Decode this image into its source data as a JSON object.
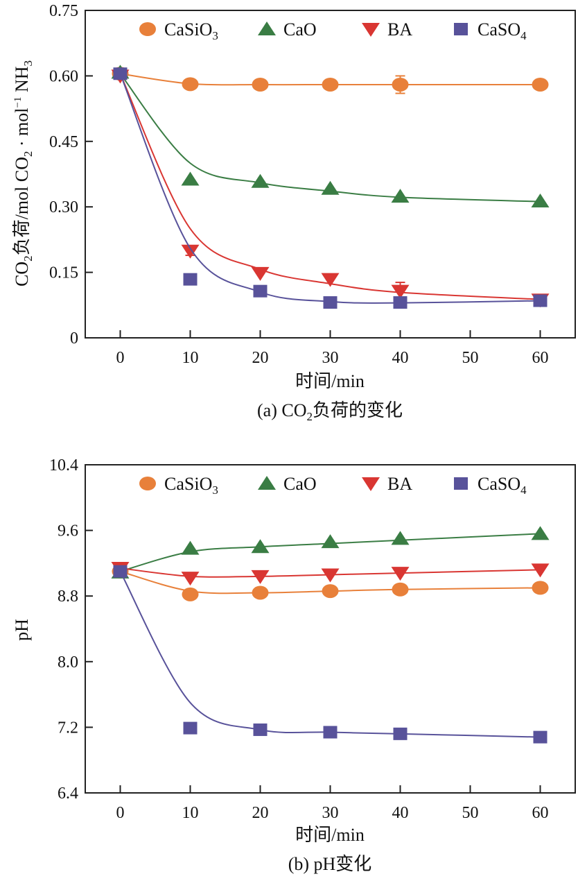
{
  "chart_data": [
    {
      "type": "line",
      "panel": "a",
      "title": "(a) CO₂负荷的变化",
      "caption_parts": {
        "prefix": "(a) CO",
        "sub": "2",
        "suffix": "负荷的变化"
      },
      "xlabel": "时间/min",
      "ylabel": "CO₂负荷/mol CO₂·mol⁻¹ NH₃",
      "ylabel_parts": {
        "p1": "CO",
        "s1": "2",
        "p2": "负荷/mol CO",
        "s2": "2",
        "p3": " · mol",
        "sup": "−1",
        "p4": " NH",
        "s3": "3"
      },
      "xlim": [
        -5,
        65
      ],
      "ylim": [
        0,
        0.75
      ],
      "xticks": [
        0,
        10,
        20,
        30,
        40,
        50,
        60
      ],
      "xtick_labels": [
        "0",
        "10",
        "20",
        "30",
        "40",
        "50",
        "60"
      ],
      "yticks": [
        0,
        0.15,
        0.3,
        0.45,
        0.6,
        0.75
      ],
      "ytick_labels": [
        "0",
        "0.15",
        "0.30",
        "0.45",
        "0.60",
        "0.75"
      ],
      "grid": false,
      "legend_position": "top",
      "x": [
        0,
        10,
        20,
        30,
        40,
        60
      ],
      "series": [
        {
          "name": "CaSiO3",
          "label_main": "CaSiO",
          "label_sub": "3",
          "marker": "circle",
          "color": "#E8803A",
          "values": [
            0.605,
            0.581,
            0.58,
            0.58,
            0.58,
            0.58
          ],
          "error": [
            0,
            0,
            0,
            0,
            0.02,
            0
          ],
          "fit": [
            0.605,
            0.582,
            0.58,
            0.58,
            0.58,
            0.58
          ]
        },
        {
          "name": "CaO",
          "label_main": "CaO",
          "label_sub": "",
          "marker": "triangle-up",
          "color": "#3A7D44",
          "values": [
            0.608,
            0.363,
            0.358,
            0.342,
            0.324,
            0.313
          ],
          "error": [
            0,
            0,
            0,
            0,
            0,
            0
          ],
          "fit": [
            0.605,
            0.4,
            0.355,
            0.336,
            0.322,
            0.312
          ]
        },
        {
          "name": "BA",
          "label_main": "BA",
          "label_sub": "",
          "marker": "triangle-down",
          "color": "#D93632",
          "values": [
            0.6,
            0.199,
            0.148,
            0.134,
            0.107,
            0.087
          ],
          "error": [
            0,
            0.01,
            0,
            0,
            0.02,
            0
          ],
          "fit": [
            0.605,
            0.25,
            0.157,
            0.124,
            0.104,
            0.088
          ]
        },
        {
          "name": "CaSO4",
          "label_main": "CaSO",
          "label_sub": "4",
          "marker": "square",
          "color": "#58529A",
          "values": [
            0.605,
            0.134,
            0.107,
            0.081,
            0.081,
            0.085
          ],
          "error": [
            0,
            0,
            0,
            0,
            0,
            0
          ],
          "fit": [
            0.605,
            0.205,
            0.105,
            0.083,
            0.08,
            0.085
          ]
        }
      ]
    },
    {
      "type": "line",
      "panel": "b",
      "title": "(b) pH变化",
      "caption_parts": {
        "prefix": "(b) pH变化",
        "sub": "",
        "suffix": ""
      },
      "xlabel": "时间/min",
      "ylabel": "pH",
      "xlim": [
        -5,
        65
      ],
      "ylim": [
        6.4,
        10.4
      ],
      "xticks": [
        0,
        10,
        20,
        30,
        40,
        50,
        60
      ],
      "xtick_labels": [
        "0",
        "10",
        "20",
        "30",
        "40",
        "50",
        "60"
      ],
      "yticks": [
        6.4,
        7.2,
        8.0,
        8.8,
        9.6,
        10.4
      ],
      "ytick_labels": [
        "6.4",
        "7.2",
        "8.0",
        "8.8",
        "9.6",
        "10.4"
      ],
      "grid": false,
      "legend_position": "top",
      "x": [
        0,
        10,
        20,
        30,
        40,
        60
      ],
      "series": [
        {
          "name": "CaSiO3",
          "label_main": "CaSiO",
          "label_sub": "3",
          "marker": "circle",
          "color": "#E8803A",
          "values": [
            9.1,
            8.82,
            8.84,
            8.86,
            8.88,
            8.9
          ],
          "error": [
            0,
            0,
            0,
            0,
            0,
            0
          ],
          "fit": [
            9.1,
            8.86,
            8.84,
            8.86,
            8.88,
            8.9
          ]
        },
        {
          "name": "CaO",
          "label_main": "CaO",
          "label_sub": "",
          "marker": "triangle-up",
          "color": "#3A7D44",
          "values": [
            9.09,
            9.38,
            9.4,
            9.46,
            9.5,
            9.56
          ],
          "error": [
            0,
            0,
            0,
            0,
            0,
            0
          ],
          "fit": [
            9.1,
            9.34,
            9.4,
            9.44,
            9.48,
            9.56
          ]
        },
        {
          "name": "BA",
          "label_main": "BA",
          "label_sub": "",
          "marker": "triangle-down",
          "color": "#D93632",
          "values": [
            9.14,
            9.02,
            9.04,
            9.06,
            9.08,
            9.12
          ],
          "error": [
            0,
            0,
            0,
            0,
            0,
            0
          ],
          "fit": [
            9.14,
            9.04,
            9.04,
            9.06,
            9.08,
            9.12
          ]
        },
        {
          "name": "CaSO4",
          "label_main": "CaSO",
          "label_sub": "4",
          "marker": "square",
          "color": "#58529A",
          "values": [
            9.1,
            7.19,
            7.17,
            7.14,
            7.12,
            7.08
          ],
          "error": [
            0,
            0,
            0,
            0,
            0,
            0
          ],
          "fit": [
            9.1,
            7.5,
            7.17,
            7.14,
            7.12,
            7.08
          ]
        }
      ]
    }
  ]
}
